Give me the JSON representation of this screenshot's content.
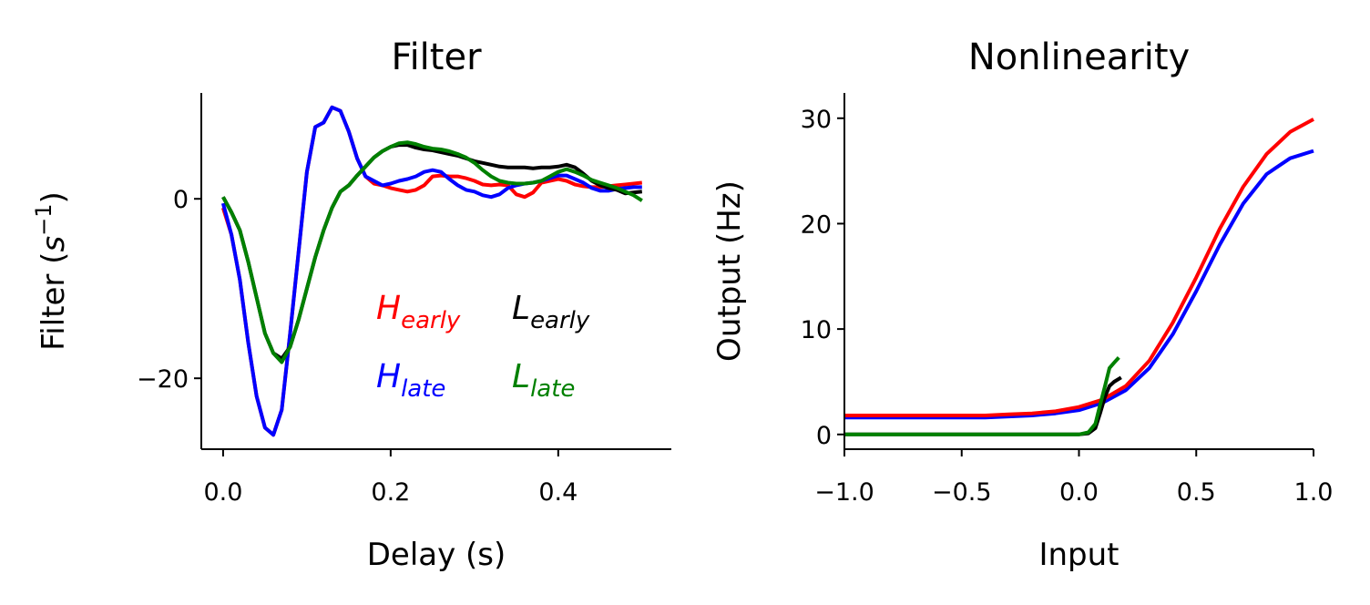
{
  "chart_data": [
    {
      "type": "line",
      "title": "Filter",
      "xlabel": "Delay (s)",
      "ylabel": [
        "Filter (",
        "s",
        "−1",
        ")"
      ],
      "legend": true,
      "x": [
        0,
        0.01,
        0.02,
        0.03,
        0.04,
        0.05,
        0.06,
        0.07,
        0.08,
        0.09,
        0.1,
        0.11,
        0.12,
        0.13,
        0.14,
        0.15,
        0.16,
        0.17,
        0.18,
        0.19,
        0.2,
        0.21,
        0.22,
        0.23,
        0.24,
        0.25,
        0.26,
        0.27,
        0.28,
        0.29,
        0.3,
        0.31,
        0.32,
        0.33,
        0.34,
        0.35,
        0.36,
        0.37,
        0.38,
        0.39,
        0.4,
        0.41,
        0.42,
        0.43,
        0.44,
        0.45,
        0.46,
        0.47,
        0.48,
        0.49,
        0.5
      ],
      "xlim": [
        -0.026,
        0.535
      ],
      "ylim": [
        -27.9,
        11.8
      ],
      "xticks": [
        {
          "value": 0,
          "label": "0.0"
        },
        {
          "value": 0.2,
          "label": "0.2"
        },
        {
          "value": 0.4,
          "label": "0.4"
        }
      ],
      "yticks": [
        {
          "value": -20,
          "label": "−20"
        },
        0
      ],
      "series": [
        {
          "name": "H",
          "subscript": "early",
          "color": "#ff0000",
          "values": [
            -1,
            -4,
            -9,
            -16,
            -22,
            -25.5,
            -26.3,
            -23.5,
            -15,
            -6,
            3,
            8,
            8.5,
            10.2,
            9.8,
            7.5,
            4.5,
            2.5,
            1.7,
            1.5,
            1.2,
            1.0,
            0.8,
            1.0,
            1.5,
            2.5,
            2.6,
            2.5,
            2.5,
            2.3,
            2.0,
            1.6,
            1.5,
            1.6,
            1.5,
            0.5,
            0.2,
            0.7,
            1.8,
            2.0,
            2.2,
            2.0,
            1.6,
            1.4,
            1.3,
            1.3,
            1.4,
            1.5,
            1.6,
            1.7,
            1.8
          ]
        },
        {
          "name": "H",
          "subscript": "late",
          "color": "#0000ff",
          "values": [
            -0.5,
            -4,
            -9,
            -16,
            -22,
            -25.5,
            -26.3,
            -23.5,
            -15,
            -6,
            3,
            8,
            8.5,
            10.2,
            9.8,
            7.5,
            4.5,
            2.5,
            2.0,
            1.5,
            1.7,
            2.0,
            2.2,
            2.5,
            3.0,
            3.2,
            3.0,
            2.2,
            1.5,
            1.0,
            0.8,
            0.4,
            0.2,
            0.5,
            1.2,
            1.5,
            1.7,
            1.8,
            2.0,
            2.3,
            2.6,
            2.6,
            2.2,
            1.8,
            1.2,
            0.9,
            0.9,
            1.1,
            1.2,
            1.3,
            1.3
          ]
        },
        {
          "name": "L",
          "subscript": "early",
          "color": "#000000",
          "values": [
            0.2,
            -1.5,
            -3.5,
            -7,
            -11,
            -15,
            -17.2,
            -17.8,
            -16.5,
            -13.5,
            -10,
            -6.5,
            -3.5,
            -1.0,
            0.8,
            1.5,
            2.6,
            3.6,
            4.6,
            5.3,
            5.8,
            6.0,
            6.0,
            5.7,
            5.5,
            5.4,
            5.2,
            5.0,
            4.8,
            4.5,
            4.2,
            4.0,
            3.8,
            3.6,
            3.5,
            3.5,
            3.5,
            3.4,
            3.5,
            3.5,
            3.6,
            3.8,
            3.5,
            2.8,
            2.0,
            1.5,
            1.2,
            1.0,
            0.6,
            0.7,
            0.8
          ]
        },
        {
          "name": "L",
          "subscript": "late",
          "color": "#008000",
          "values": [
            0.2,
            -1.5,
            -3.5,
            -7,
            -11,
            -15,
            -17.2,
            -18.2,
            -16.5,
            -13.5,
            -10,
            -6.5,
            -3.5,
            -1.0,
            0.8,
            1.5,
            2.6,
            3.6,
            4.6,
            5.3,
            5.8,
            6.2,
            6.3,
            6.1,
            5.8,
            5.6,
            5.5,
            5.3,
            5.0,
            4.6,
            4.0,
            3.2,
            2.5,
            2.0,
            1.8,
            1.7,
            1.7,
            1.8,
            2.0,
            2.5,
            3.0,
            3.3,
            3.0,
            2.6,
            2.1,
            1.8,
            1.5,
            1.2,
            0.8,
            0.4,
            -0.2
          ]
        }
      ]
    },
    {
      "type": "line",
      "title": "Nonlinearity",
      "xlabel": "Input",
      "ylabel": "Output (Hz)",
      "legend": false,
      "xlim": [
        -1,
        1
      ],
      "ylim": [
        -1.4,
        32.4
      ],
      "xticks": [
        {
          "value": -1,
          "label": "−1.0"
        },
        {
          "value": -0.5,
          "label": "−0.5"
        },
        {
          "value": 0,
          "label": "0.0"
        },
        {
          "value": 0.5,
          "label": "0.5"
        },
        {
          "value": 1,
          "label": "1.0"
        }
      ],
      "yticks": [
        0,
        10,
        20,
        30
      ],
      "series": [
        {
          "name": "H",
          "subscript": "late",
          "color": "#0000ff",
          "x": [
            -1,
            -0.9,
            -0.8,
            -0.7,
            -0.6,
            -0.5,
            -0.4,
            -0.3,
            -0.2,
            -0.1,
            0,
            0.1,
            0.2,
            0.3,
            0.4,
            0.5,
            0.6,
            0.7,
            0.8,
            0.9,
            1.0
          ],
          "values": [
            1.6,
            1.6,
            1.6,
            1.6,
            1.6,
            1.6,
            1.6,
            1.7,
            1.8,
            2.0,
            2.3,
            3.0,
            4.2,
            6.3,
            9.5,
            13.6,
            18.0,
            21.9,
            24.7,
            26.2,
            26.9
          ]
        },
        {
          "name": "H",
          "subscript": "early",
          "color": "#ff0000",
          "x": [
            -1,
            -0.9,
            -0.8,
            -0.7,
            -0.6,
            -0.5,
            -0.4,
            -0.3,
            -0.2,
            -0.1,
            0,
            0.1,
            0.2,
            0.3,
            0.4,
            0.5,
            0.6,
            0.7,
            0.8,
            0.9,
            1.0
          ],
          "values": [
            1.8,
            1.8,
            1.8,
            1.8,
            1.8,
            1.8,
            1.8,
            1.9,
            2.0,
            2.2,
            2.6,
            3.3,
            4.6,
            7.0,
            10.6,
            14.9,
            19.5,
            23.5,
            26.6,
            28.7,
            29.9
          ]
        },
        {
          "name": "L",
          "subscript": "early",
          "color": "#000000",
          "x": [
            -1,
            -0.5,
            0,
            0.04,
            0.07,
            0.09,
            0.11,
            0.13,
            0.15,
            0.18
          ],
          "values": [
            0,
            0,
            0,
            0.1,
            0.6,
            2.0,
            3.5,
            4.6,
            5.0,
            5.4
          ]
        },
        {
          "name": "L",
          "subscript": "late",
          "color": "#008000",
          "x": [
            -1,
            -0.5,
            0,
            0.04,
            0.07,
            0.09,
            0.11,
            0.13,
            0.15,
            0.17
          ],
          "values": [
            0,
            0,
            0,
            0.2,
            1.0,
            2.8,
            4.5,
            6.3,
            6.8,
            7.3
          ]
        }
      ]
    }
  ]
}
